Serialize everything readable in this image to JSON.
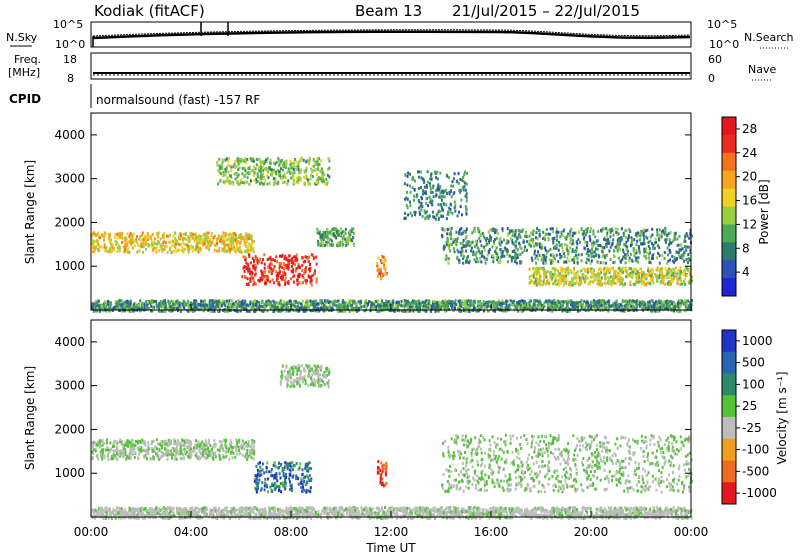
{
  "header": {
    "station": "Kodiak (fitACF)",
    "beam": "Beam 13",
    "dates": "21/Jul/2015 – 22/Jul/2015"
  },
  "top_panels": {
    "nsky_label": "N.Sky",
    "nsky_ticks": [
      "10^5",
      "10^0"
    ],
    "nsearch_label": "N.Search",
    "nsearch_ticks": [
      "10^5",
      "10^0"
    ],
    "freq_label": "Freq.",
    "freq_unit": "[MHz]",
    "freq_ticks": [
      "18",
      "8"
    ],
    "nave_label": "Nave",
    "nave_ticks": [
      "60",
      "0"
    ],
    "cpid_label": "CPID",
    "cpid_text": "normalsound (fast) -157 RF"
  },
  "x_axis": {
    "ticks": [
      "00:00",
      "04:00",
      "08:00",
      "12:00",
      "16:00",
      "20:00",
      "00:00"
    ],
    "label": "Time UT"
  },
  "power_panel": {
    "ylabel": "Slant Range [km]",
    "yticks": [
      "4000",
      "3000",
      "2000",
      "1000"
    ],
    "colorbar_label": "Power [dB]",
    "colorbar_ticks": [
      "28",
      "24",
      "20",
      "16",
      "12",
      "8",
      "4"
    ],
    "colors": [
      "#1c25d8",
      "#2a52b8",
      "#2f7a6a",
      "#4faa58",
      "#9ad040",
      "#f0d023",
      "#f7a51c",
      "#f3721e",
      "#ec2b1e",
      "#e3181e"
    ]
  },
  "velocity_panel": {
    "ylabel": "Slant Range [km]",
    "yticks": [
      "4000",
      "3000",
      "2000",
      "1000"
    ],
    "colorbar_label": "Velocity [m s⁻¹]",
    "colorbar_ticks": [
      "1000",
      "500",
      "100",
      "25",
      "-25",
      "-100",
      "-500",
      "-1000"
    ],
    "colors": [
      "#2233c8",
      "#2b63b3",
      "#2f8a6a",
      "#55c23a",
      "#bcbcbc",
      "#f0a01c",
      "#ef6b1e",
      "#e3181e"
    ]
  },
  "chart_data": {
    "type": "heatmap",
    "time_range_h": [
      0,
      24
    ],
    "range_km_lim": [
      0,
      4500
    ],
    "power_db_lim": [
      0,
      30
    ],
    "velocity_lim": [
      -1000,
      1000
    ],
    "power_regions": [
      {
        "t": [
          0,
          6.5
        ],
        "r": [
          1350,
          1800
        ],
        "p": [
          12,
          22
        ]
      },
      {
        "t": [
          6.0,
          9.0
        ],
        "r": [
          600,
          1300
        ],
        "p": [
          22,
          30
        ]
      },
      {
        "t": [
          9.0,
          10.5
        ],
        "r": [
          1500,
          1900
        ],
        "p": [
          6,
          14
        ]
      },
      {
        "t": [
          11.4,
          11.8
        ],
        "r": [
          700,
          1300
        ],
        "p": [
          16,
          26
        ]
      },
      {
        "t": [
          5.0,
          9.5
        ],
        "r": [
          2900,
          3500
        ],
        "p": [
          8,
          16
        ]
      },
      {
        "t": [
          12.5,
          15.0
        ],
        "r": [
          2100,
          3200
        ],
        "p": [
          4,
          12
        ]
      },
      {
        "t": [
          14.0,
          24.0
        ],
        "r": [
          1100,
          1900
        ],
        "p": [
          4,
          14
        ]
      },
      {
        "t": [
          17.5,
          24.0
        ],
        "r": [
          600,
          1000
        ],
        "p": [
          10,
          20
        ]
      },
      {
        "t": [
          0,
          24.0
        ],
        "r": [
          0,
          250
        ],
        "p": [
          4,
          14
        ]
      }
    ],
    "velocity_regions": [
      {
        "t": [
          0,
          6.5
        ],
        "r": [
          1350,
          1800
        ],
        "v": [
          -25,
          25
        ]
      },
      {
        "t": [
          6.5,
          8.8
        ],
        "r": [
          600,
          1300
        ],
        "v": [
          100,
          1000
        ]
      },
      {
        "t": [
          11.4,
          11.8
        ],
        "r": [
          700,
          1300
        ],
        "v": [
          -1000,
          -500
        ]
      },
      {
        "t": [
          7.5,
          9.5
        ],
        "r": [
          3000,
          3500
        ],
        "v": [
          -25,
          25
        ]
      },
      {
        "t": [
          14.0,
          24.0
        ],
        "r": [
          600,
          1900
        ],
        "v": [
          -25,
          25
        ]
      },
      {
        "t": [
          0,
          24.0
        ],
        "r": [
          0,
          250
        ],
        "v": [
          -100,
          25
        ]
      }
    ]
  }
}
